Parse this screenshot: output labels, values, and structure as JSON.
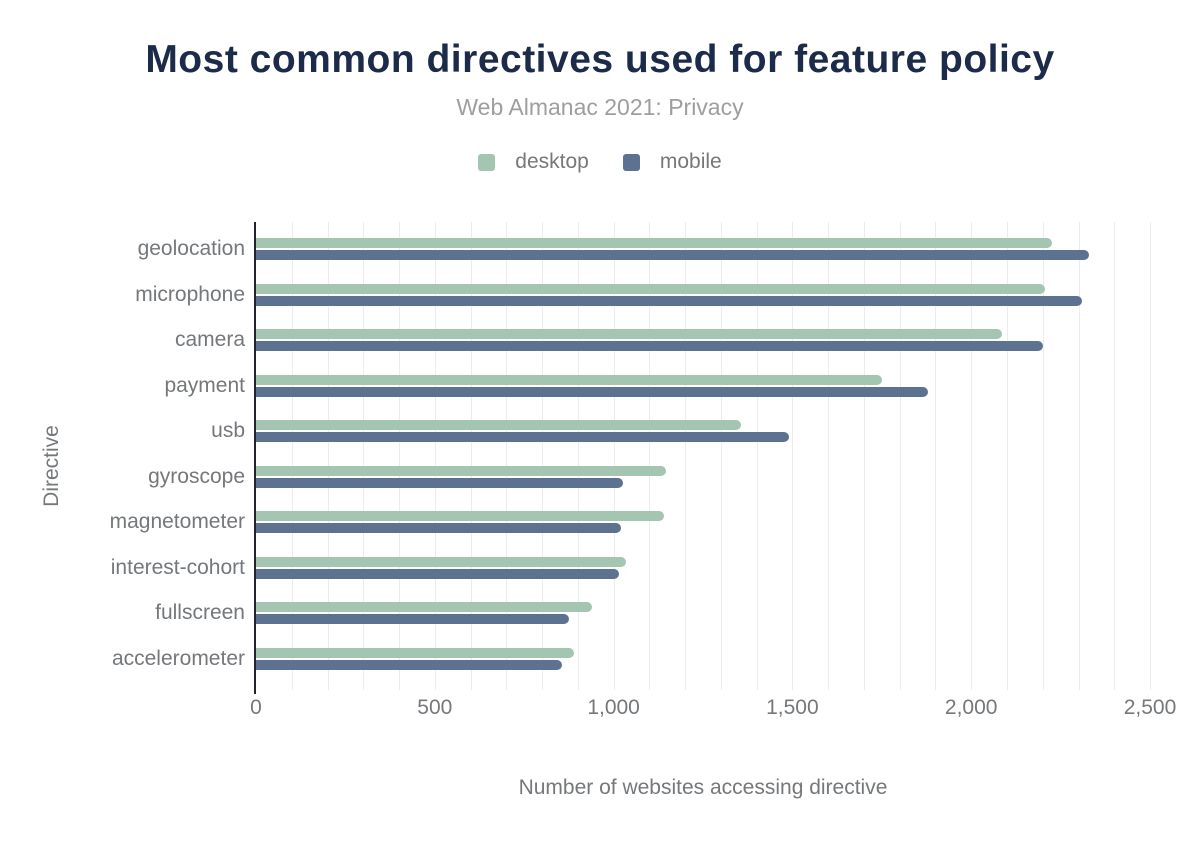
{
  "colors": {
    "page_background": "#ffffff",
    "title": "#1b2b49",
    "subtitle": "#9e9e9e",
    "axis_text": "#75787b",
    "axis_line": "#21252b",
    "gridline": "#ececec",
    "desktop": "#a4c5b2",
    "mobile": "#5d7191"
  },
  "chart_data": {
    "type": "bar",
    "orientation": "horizontal",
    "title": "Most common directives used for feature policy",
    "subtitle": "Web Almanac 2021: Privacy",
    "xlabel": "Number of websites accessing directive",
    "ylabel": "Directive",
    "xlim": [
      0,
      2500
    ],
    "grid": true,
    "gridline_interval": 100,
    "legend_position": "top",
    "x_ticks": [
      0,
      500,
      1000,
      1500,
      2000,
      2500
    ],
    "x_tick_labels": [
      "0",
      "500",
      "1,000",
      "1,500",
      "2,000",
      "2,500"
    ],
    "categories": [
      "geolocation",
      "microphone",
      "camera",
      "payment",
      "usb",
      "gyroscope",
      "magnetometer",
      "interest-cohort",
      "fullscreen",
      "accelerometer"
    ],
    "series": [
      {
        "name": "desktop",
        "color": "#a4c5b2",
        "values": [
          2225,
          2205,
          2085,
          1750,
          1355,
          1145,
          1140,
          1035,
          940,
          890
        ]
      },
      {
        "name": "mobile",
        "color": "#5d7191",
        "values": [
          2330,
          2310,
          2200,
          1880,
          1490,
          1025,
          1020,
          1015,
          875,
          855
        ]
      }
    ]
  }
}
